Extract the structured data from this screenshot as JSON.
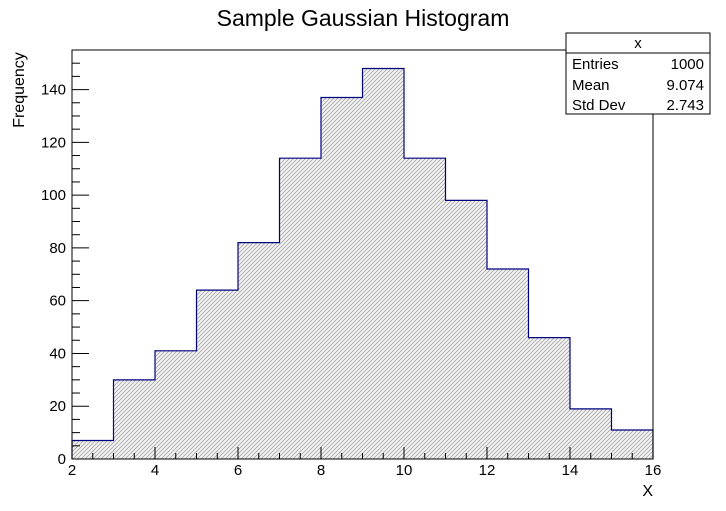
{
  "chart_data": {
    "type": "bar",
    "title": "Sample Gaussian Histogram",
    "xlabel": "X",
    "ylabel": "Frequency",
    "xlim": [
      2,
      16
    ],
    "ylim": [
      0,
      155
    ],
    "x_ticks": [
      2,
      4,
      6,
      8,
      10,
      12,
      14,
      16
    ],
    "y_ticks": [
      0,
      20,
      40,
      60,
      80,
      100,
      120,
      140
    ],
    "bin_edges": [
      2,
      3,
      4,
      5,
      6,
      7,
      8,
      9,
      10,
      11,
      12,
      13,
      14,
      15,
      16
    ],
    "values": [
      7,
      30,
      41,
      64,
      82,
      114,
      137,
      148,
      114,
      98,
      72,
      46,
      19,
      11
    ],
    "line_color": "#000080",
    "fill": "hatched light gray",
    "grid": false,
    "stats_box": {
      "title": "x",
      "placement": "top-right",
      "rows": [
        {
          "label": "Entries",
          "value": "1000"
        },
        {
          "label": "Mean",
          "value": "9.074"
        },
        {
          "label": "Std Dev",
          "value": "2.743"
        }
      ]
    }
  }
}
